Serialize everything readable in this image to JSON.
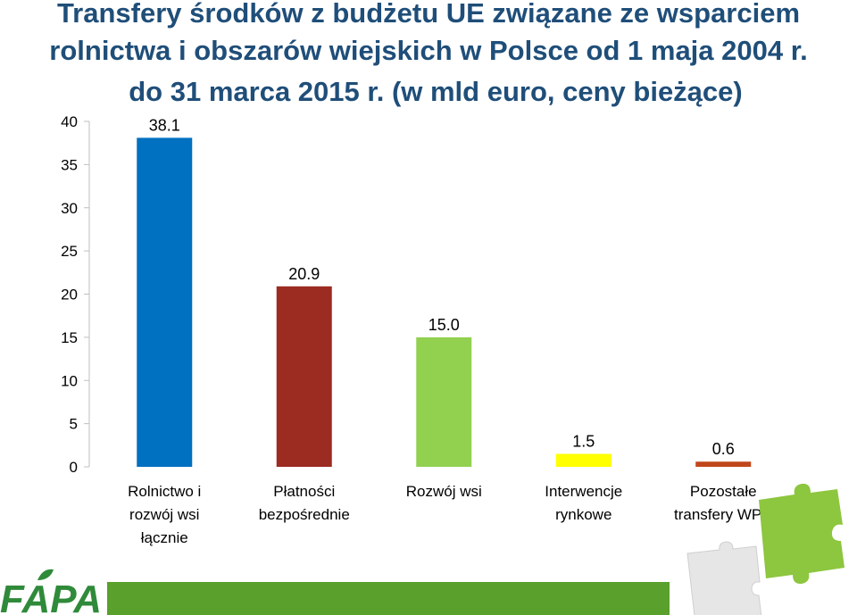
{
  "chart_data": {
    "type": "bar",
    "title": [
      "Transfery środków z budżetu UE związane ze wsparciem",
      "rolnictwa i obszarów wiejskich w Polsce od 1 maja 2004 r.",
      "do 31 marca 2015 r. (w mld euro, ceny bieżące)"
    ],
    "categories": [
      [
        "Rolnictwo i",
        "rozwój wsi",
        "łącznie"
      ],
      [
        "Płatności",
        "bezpośrednie"
      ],
      [
        "Rozwój wsi"
      ],
      [
        "Interwencje",
        "rynkowe"
      ],
      [
        "Pozostałe",
        "transfery WPR"
      ]
    ],
    "values": [
      38.1,
      20.9,
      15.0,
      1.5,
      0.6
    ],
    "data_labels": [
      "38.1",
      "20.9",
      "15.0",
      "1.5",
      "0.6"
    ],
    "colors": [
      "#0070c0",
      "#9c2b22",
      "#92d050",
      "#ffff00",
      "#c0471b"
    ],
    "ylim": [
      0,
      40
    ],
    "yticks": [
      "0",
      "5",
      "10",
      "15",
      "20",
      "25",
      "30",
      "35",
      "40"
    ],
    "xlabel": "",
    "ylabel": "",
    "grid": false,
    "legend": "none"
  },
  "branding": {
    "logo_text": "FAPA",
    "footer_color": "#5aa02c",
    "puzzle_color": "#8dc63f"
  }
}
